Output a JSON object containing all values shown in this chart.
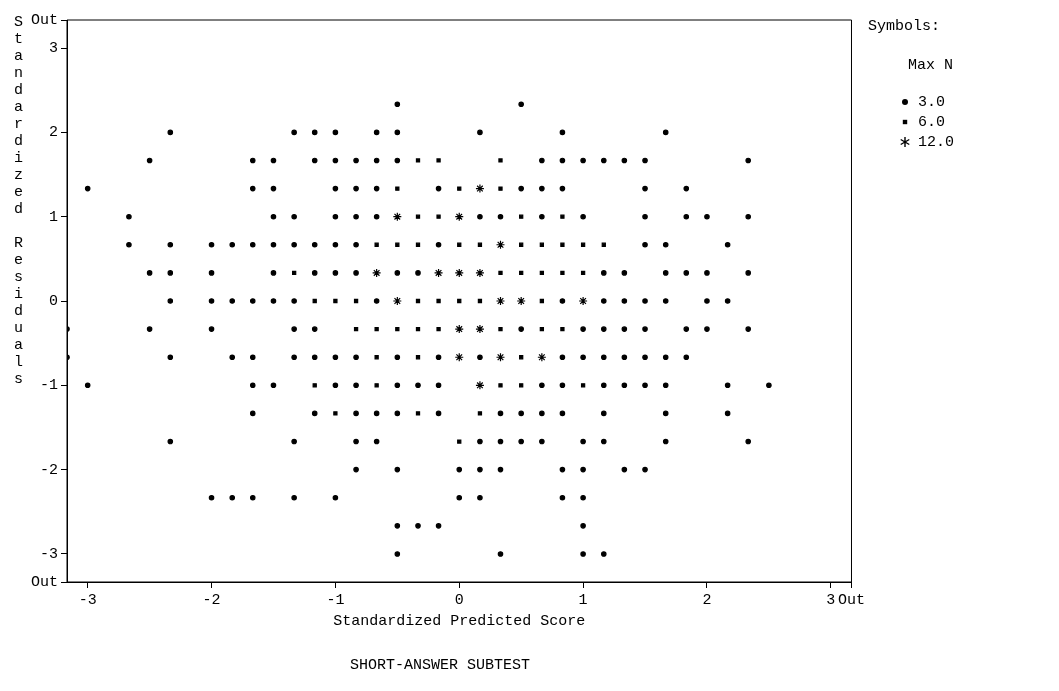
{
  "chart_data": {
    "type": "scatter",
    "title": "SHORT-ANSWER SUBTEST",
    "xlabel": "Standardized Predicted Score",
    "ylabel": "Standardized Residuals",
    "legend_title": "Symbols:",
    "annotations": [
      "Max N"
    ],
    "legend": "right",
    "grid": false,
    "xlim": [
      -3.167,
      3.167
    ],
    "ylim": [
      -3.333,
      3.333
    ],
    "xticks": [
      -3,
      -2,
      -1,
      0,
      1,
      2,
      3,
      {
        "value": 3.167,
        "label": "Out"
      }
    ],
    "yticks": [
      {
        "value": -3.333,
        "label": "Out"
      },
      -3,
      -2,
      -1,
      0,
      1,
      2,
      3,
      {
        "value": 3.333,
        "label": "Out"
      }
    ],
    "series": [
      {
        "name": "3.0",
        "color": "#000000",
        "marker": "circle",
        "x": [
          -0.5,
          0.5,
          -2.333,
          -1.333,
          -1.167,
          -1,
          -0.667,
          -0.5,
          0.167,
          0.833,
          1.667,
          -2.5,
          -1.667,
          -1.5,
          -1.167,
          -1,
          -0.833,
          -0.667,
          -0.5,
          0.667,
          0.833,
          1,
          1.167,
          1.333,
          1.5,
          2.333,
          -3,
          -1.667,
          -1.5,
          -1,
          -0.833,
          -0.667,
          -0.167,
          0.5,
          0.667,
          0.833,
          1.5,
          1.833,
          -2.667,
          -1.5,
          -1.333,
          -1,
          -0.833,
          -0.667,
          0.167,
          0.333,
          0.667,
          1,
          1.5,
          1.833,
          2,
          2.333,
          -2.667,
          -2.333,
          -2,
          -1.833,
          -1.667,
          -1.5,
          -1.333,
          -1.167,
          -1,
          -0.833,
          -0.167,
          1.5,
          1.667,
          2.167,
          -2.5,
          -2.333,
          -2,
          -1.5,
          -1.167,
          -1,
          -0.833,
          -0.5,
          -0.333,
          1.167,
          1.333,
          1.667,
          1.833,
          2,
          2.333,
          -2.333,
          -2,
          -1.833,
          -1.667,
          -1.5,
          -1.333,
          -0.667,
          0.833,
          1.167,
          1.333,
          1.5,
          1.667,
          2,
          2.167,
          -3.167,
          -2.5,
          -2,
          -1.333,
          -1.167,
          0.5,
          1,
          1.167,
          1.333,
          1.5,
          1.833,
          2,
          2.333,
          -3.167,
          -2.333,
          -1.833,
          -1.667,
          -1.333,
          -1.167,
          -1,
          -0.833,
          -0.5,
          -0.167,
          0.167,
          0.833,
          1,
          1.167,
          1.333,
          1.5,
          1.667,
          1.833,
          -3,
          -1.667,
          -1.5,
          -1,
          -0.833,
          -0.5,
          -0.333,
          -0.167,
          0.667,
          0.833,
          1.167,
          1.333,
          1.5,
          1.667,
          2.167,
          2.5,
          -1.667,
          -1.167,
          -0.833,
          -0.667,
          -0.5,
          -0.167,
          0.333,
          0.5,
          0.667,
          0.833,
          1.167,
          1.667,
          2.167,
          -2.333,
          -1.333,
          -0.833,
          -0.667,
          0.167,
          0.333,
          0.5,
          0.667,
          1,
          1.167,
          1.667,
          2.333,
          -0.833,
          -0.5,
          0,
          0.167,
          0.333,
          0.833,
          1,
          1.333,
          1.5,
          -2,
          -1.833,
          -1.667,
          -1.333,
          -1,
          0,
          0.167,
          0.833,
          1,
          -0.5,
          -0.333,
          -0.167,
          1,
          -0.5,
          0.333,
          1,
          1.167
        ],
        "values": [
          2.333,
          2.333,
          2,
          2,
          2,
          2,
          2,
          2,
          2,
          2,
          2,
          1.667,
          1.667,
          1.667,
          1.667,
          1.667,
          1.667,
          1.667,
          1.667,
          1.667,
          1.667,
          1.667,
          1.667,
          1.667,
          1.667,
          1.667,
          1.333,
          1.333,
          1.333,
          1.333,
          1.333,
          1.333,
          1.333,
          1.333,
          1.333,
          1.333,
          1.333,
          1.333,
          1,
          1,
          1,
          1,
          1,
          1,
          1,
          1,
          1,
          1,
          1,
          1,
          1,
          1,
          0.667,
          0.667,
          0.667,
          0.667,
          0.667,
          0.667,
          0.667,
          0.667,
          0.667,
          0.667,
          0.667,
          0.667,
          0.667,
          0.667,
          0.333,
          0.333,
          0.333,
          0.333,
          0.333,
          0.333,
          0.333,
          0.333,
          0.333,
          0.333,
          0.333,
          0.333,
          0.333,
          0.333,
          0.333,
          0,
          0,
          0,
          0,
          0,
          0,
          0,
          0,
          0,
          0,
          0,
          0,
          0,
          0,
          -0.333,
          -0.333,
          -0.333,
          -0.333,
          -0.333,
          -0.333,
          -0.333,
          -0.333,
          -0.333,
          -0.333,
          -0.333,
          -0.333,
          -0.333,
          -0.667,
          -0.667,
          -0.667,
          -0.667,
          -0.667,
          -0.667,
          -0.667,
          -0.667,
          -0.667,
          -0.667,
          -0.667,
          -0.667,
          -0.667,
          -0.667,
          -0.667,
          -0.667,
          -0.667,
          -0.667,
          -1,
          -1,
          -1,
          -1,
          -1,
          -1,
          -1,
          -1,
          -1,
          -1,
          -1,
          -1,
          -1,
          -1,
          -1,
          -1,
          -1.333,
          -1.333,
          -1.333,
          -1.333,
          -1.333,
          -1.333,
          -1.333,
          -1.333,
          -1.333,
          -1.333,
          -1.333,
          -1.333,
          -1.333,
          -1.667,
          -1.667,
          -1.667,
          -1.667,
          -1.667,
          -1.667,
          -1.667,
          -1.667,
          -1.667,
          -1.667,
          -1.667,
          -1.667,
          -2,
          -2,
          -2,
          -2,
          -2,
          -2,
          -2,
          -2,
          -2,
          -2.333,
          -2.333,
          -2.333,
          -2.333,
          -2.333,
          -2.333,
          -2.333,
          -2.333,
          -2.333,
          -2.667,
          -2.667,
          -2.667,
          -2.667,
          -3,
          -3,
          -3,
          -3
        ]
      },
      {
        "name": "6.0",
        "color": "#000000",
        "marker": "square",
        "x": [
          -0.333,
          -0.167,
          0.333,
          -0.5,
          0,
          0.333,
          -0.333,
          -0.167,
          0.5,
          0.833,
          -0.667,
          -0.5,
          -0.333,
          0,
          0.167,
          0.5,
          0.667,
          0.833,
          1,
          1.167,
          -1.333,
          0.333,
          0.5,
          0.667,
          0.833,
          1,
          -1.167,
          -1,
          -0.833,
          -0.333,
          -0.167,
          0,
          0.167,
          0.667,
          -0.833,
          -0.667,
          -0.5,
          -0.333,
          -0.167,
          0.333,
          0.667,
          0.833,
          -0.667,
          -0.333,
          0.5,
          -1.167,
          -0.667,
          0.333,
          0.5,
          1,
          -1,
          -0.333,
          0.167,
          0
        ],
        "values": [
          1.667,
          1.667,
          1.667,
          1.333,
          1.333,
          1.333,
          1,
          1,
          1,
          1,
          0.667,
          0.667,
          0.667,
          0.667,
          0.667,
          0.667,
          0.667,
          0.667,
          0.667,
          0.667,
          0.333,
          0.333,
          0.333,
          0.333,
          0.333,
          0.333,
          0,
          0,
          0,
          0,
          0,
          0,
          0,
          0,
          -0.333,
          -0.333,
          -0.333,
          -0.333,
          -0.333,
          -0.333,
          -0.333,
          -0.333,
          -0.667,
          -0.667,
          -0.667,
          -1,
          -1,
          -1,
          -1,
          -1,
          -1.333,
          -1.333,
          -1.333,
          -1.667
        ]
      },
      {
        "name": "12.0",
        "color": "#000000",
        "marker": "cross",
        "x": [
          0.167,
          -0.5,
          0,
          0.333,
          -0.667,
          -0.167,
          0,
          0.167,
          -0.5,
          0.333,
          0.5,
          1,
          0,
          0.167,
          0,
          0.333,
          0.667,
          0.167
        ],
        "values": [
          1.333,
          1,
          1,
          0.667,
          0.333,
          0.333,
          0.333,
          0.333,
          0,
          0,
          0,
          0,
          -0.333,
          -0.333,
          -0.667,
          -0.667,
          -0.667,
          -1
        ]
      }
    ]
  }
}
